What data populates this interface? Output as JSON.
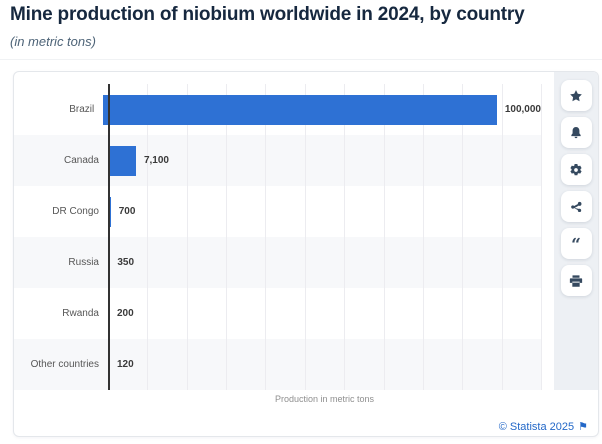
{
  "page": {
    "title": "Mine production of niobium worldwide in 2024, by country",
    "subtitle": "(in metric tons)"
  },
  "chart_data": {
    "type": "bar",
    "orientation": "horizontal",
    "title": "Mine production of niobium worldwide in 2024, by country",
    "subtitle": "(in metric tons)",
    "categories": [
      "Brazil",
      "Canada",
      "DR Congo",
      "Russia",
      "Rwanda",
      "Other countries"
    ],
    "values": [
      100000,
      7100,
      700,
      350,
      200,
      120
    ],
    "value_labels": [
      "100,000",
      "7,100",
      "700",
      "350",
      "200",
      "120"
    ],
    "xlabel": "Production in metric tons",
    "ylabel": "",
    "xlim": [
      0,
      110000
    ],
    "gridline_interval": 10000,
    "grid": true,
    "legend": "none",
    "bar_color": "#2e71d4",
    "row_stripe_color": "#f7f8fa"
  },
  "action_rail": {
    "buttons": [
      {
        "name": "favorite-button",
        "icon": "star-icon"
      },
      {
        "name": "alerts-button",
        "icon": "bell-icon"
      },
      {
        "name": "settings-button",
        "icon": "gear-icon"
      },
      {
        "name": "share-button",
        "icon": "share-icon"
      },
      {
        "name": "cite-button",
        "icon": "quote-icon"
      },
      {
        "name": "print-button",
        "icon": "printer-icon"
      }
    ]
  },
  "credit": {
    "text": "© Statista 2025",
    "icon": "flag-icon"
  },
  "colors": {
    "bar": "#2e71d4",
    "title_text": "#16283f",
    "subtitle_text": "#4d6377",
    "axis_line": "#323232",
    "gridline": "#ececf0",
    "category_label": "#565656",
    "value_label": "#3a3a3a",
    "xaxis_label": "#8f8f8f",
    "rail_background": "#edf0f4",
    "icon": "#35495f",
    "credit_link": "#2368c8",
    "card_border": "#e4e7eb"
  }
}
